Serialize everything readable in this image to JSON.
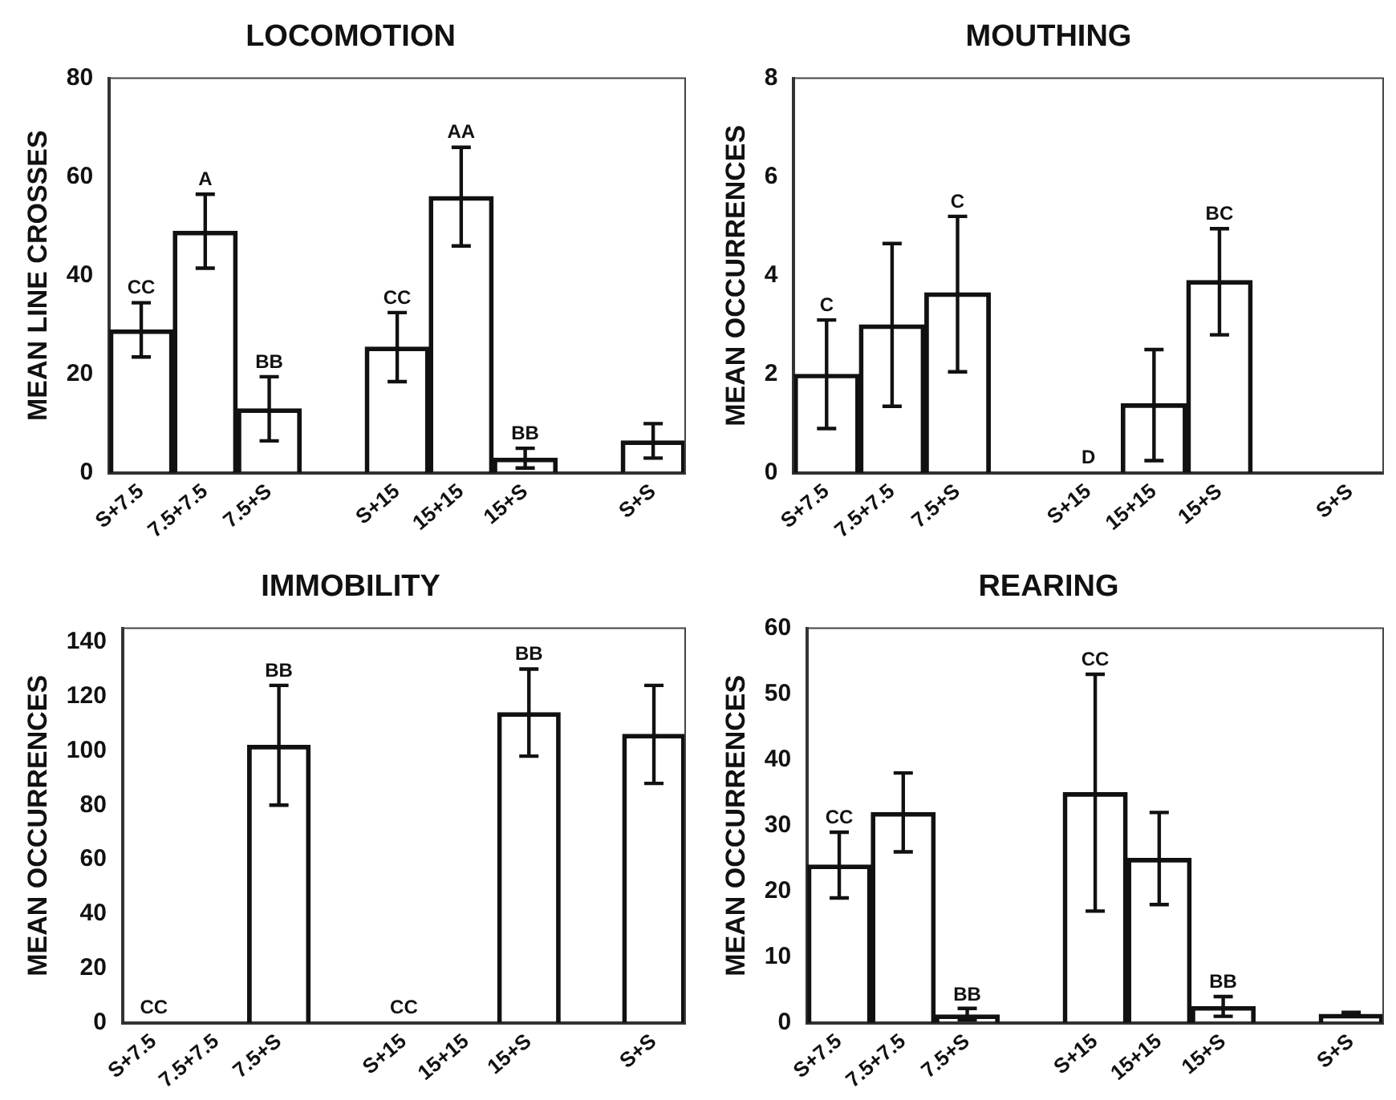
{
  "chart_data": [
    {
      "type": "bar",
      "title": "LOCOMOTION",
      "ylabel": "MEAN LINE CROSSES",
      "categories": [
        "S+7.5",
        "7.5+7.5",
        "7.5+S",
        null,
        "S+15",
        "15+15",
        "15+S",
        null,
        "S+S"
      ],
      "color": "#111111",
      "values": [
        29,
        49,
        13,
        null,
        25.5,
        56,
        3,
        null,
        6.5
      ],
      "errors": [
        5.5,
        7.5,
        6.5,
        null,
        7,
        10,
        2,
        null,
        3.5
      ],
      "ylim": [
        0,
        80
      ],
      "yticks": [
        0,
        20,
        40,
        60,
        80
      ],
      "annotations": [
        {
          "text": "CC",
          "x": "S+7.5",
          "y": 34.5
        },
        {
          "text": "A",
          "x": "7.5+7.5",
          "y": 56.5
        },
        {
          "text": "BB",
          "x": "7.5+S",
          "y": 19.5
        },
        {
          "text": "CC",
          "x": "S+15",
          "y": 32.5
        },
        {
          "text": "AA",
          "x": "15+15",
          "y": 66
        },
        {
          "text": "BB",
          "x": "15+S",
          "y": 5
        }
      ]
    },
    {
      "type": "bar",
      "title": "MOUTHING",
      "ylabel": "MEAN OCCURRENCES",
      "categories": [
        "S+7.5",
        "7.5+7.5",
        "7.5+S",
        null,
        "S+15",
        "15+15",
        "15+S",
        null,
        "S+S"
      ],
      "color": "#111111",
      "values": [
        2,
        3,
        3.65,
        null,
        0,
        1.4,
        3.9,
        null,
        0
      ],
      "errors": [
        1.1,
        1.65,
        [
          2.05,
          5.2
        ],
        null,
        null,
        [
          0.25,
          2.5
        ],
        [
          2.8,
          4.95
        ],
        null,
        null
      ],
      "ylim": [
        0,
        8
      ],
      "yticks": [
        0,
        2,
        4,
        6,
        8
      ],
      "annotations": [
        {
          "text": "C",
          "x": "S+7.5",
          "y": 3.1
        },
        {
          "text": "C",
          "x": "7.5+S",
          "y": 5.2
        },
        {
          "text": "D",
          "x": "S+15",
          "y": 0
        },
        {
          "text": "BC",
          "x": "15+S",
          "y": 4.95
        }
      ]
    },
    {
      "type": "bar",
      "title": "IMMOBILITY",
      "ylabel": "MEAN OCCURRENCES",
      "categories": [
        "S+7.5",
        "7.5+7.5",
        "7.5+S",
        null,
        "S+15",
        "15+15",
        "15+S",
        null,
        "S+S"
      ],
      "color": "#111111",
      "values": [
        0,
        0,
        102,
        null,
        0,
        0,
        114,
        null,
        106
      ],
      "errors": [
        null,
        null,
        22,
        null,
        null,
        null,
        16,
        null,
        18
      ],
      "ylim": [
        0,
        145
      ],
      "yticks": [
        0,
        20,
        40,
        60,
        80,
        100,
        120,
        140
      ],
      "annotations": [
        {
          "text": "CC",
          "x": "S+7.5",
          "y": 0
        },
        {
          "text": "BB",
          "x": "7.5+S",
          "y": 124
        },
        {
          "text": "CC",
          "x": "S+15",
          "y": 0
        },
        {
          "text": "BB",
          "x": "15+S",
          "y": 130
        }
      ]
    },
    {
      "type": "bar",
      "title": "REARING",
      "ylabel": "MEAN OCCURRENCES",
      "categories": [
        "S+7.5",
        "7.5+7.5",
        "7.5+S",
        null,
        "S+15",
        "15+15",
        "15+S",
        null,
        "S+S"
      ],
      "color": "#111111",
      "values": [
        24,
        32,
        1.2,
        null,
        35,
        25,
        2.5,
        null,
        1.3
      ],
      "errors": [
        5,
        6,
        [
          0.5,
          2.2
        ],
        null,
        18,
        7,
        1.5,
        null,
        0.3
      ],
      "ylim": [
        0,
        60
      ],
      "yticks": [
        0,
        10,
        20,
        30,
        40,
        50,
        60
      ],
      "annotations": [
        {
          "text": "CC",
          "x": "S+7.5",
          "y": 29
        },
        {
          "text": "BB",
          "x": "7.5+S",
          "y": 2
        },
        {
          "text": "CC",
          "x": "S+15",
          "y": 53
        },
        {
          "text": "BB",
          "x": "15+S",
          "y": 4
        }
      ]
    }
  ]
}
